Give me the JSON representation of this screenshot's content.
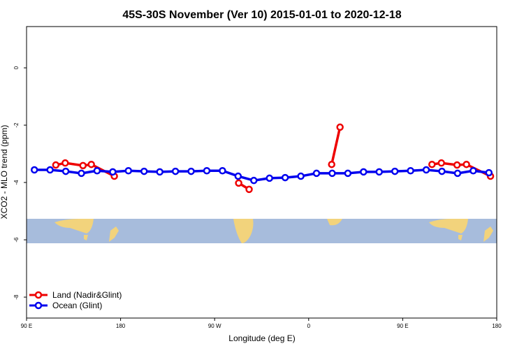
{
  "chart_data": {
    "type": "line",
    "title": "45S-30S November (Ver 10)   2015-01-01 to 2020-12-18",
    "x_label": "Longitude (deg E)",
    "y_label": "XCO2 - MLO trend (ppm)",
    "xlim": [
      90,
      540
    ],
    "xticks": [
      {
        "value": 90,
        "label": "90 E"
      },
      {
        "value": 180,
        "label": "180"
      },
      {
        "value": 270,
        "label": "90 W"
      },
      {
        "value": 360,
        "label": "0"
      },
      {
        "value": 450,
        "label": "90 E"
      },
      {
        "value": 540,
        "label": "180"
      }
    ],
    "ylim": [
      -8.73,
      1.44
    ],
    "yticks": [
      0,
      -2,
      -4,
      -6,
      -8
    ],
    "legend": "bottom-left",
    "series": [
      {
        "name": "Land (Nadir&Glint)",
        "color": "#ee0000",
        "x": [
          118,
          127,
          144,
          152,
          174,
          null,
          293,
          303,
          null,
          382,
          390,
          null,
          478,
          487,
          502,
          511,
          534
        ],
        "values": [
          -3.39,
          -3.32,
          -3.41,
          -3.37,
          -3.78,
          null,
          -4.02,
          -4.24,
          null,
          -3.37,
          -2.07,
          null,
          -3.37,
          -3.32,
          -3.39,
          -3.37,
          -3.78
        ]
      },
      {
        "name": "Ocean (Glint)",
        "color": "#0000ee",
        "x": [
          97.5,
          112.5,
          127.5,
          142.5,
          157.5,
          172.5,
          187.5,
          202.5,
          217.5,
          232.5,
          247.5,
          262.5,
          277.5,
          292.5,
          307.5,
          322.5,
          337.5,
          352.5,
          367.5,
          382.5,
          397.5,
          412.5,
          427.5,
          442.5,
          457.5,
          472.5,
          487.5,
          502.5,
          517.5,
          532.5
        ],
        "values": [
          -3.56,
          -3.56,
          -3.61,
          -3.68,
          -3.59,
          -3.63,
          -3.59,
          -3.61,
          -3.63,
          -3.61,
          -3.61,
          -3.59,
          -3.59,
          -3.78,
          -3.93,
          -3.85,
          -3.83,
          -3.78,
          -3.68,
          -3.68,
          -3.68,
          -3.63,
          -3.63,
          -3.61,
          -3.59,
          -3.56,
          -3.61,
          -3.68,
          -3.59,
          -3.66
        ]
      }
    ]
  }
}
